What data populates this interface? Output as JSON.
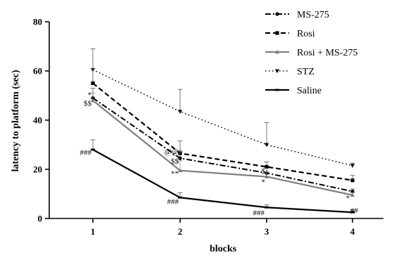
{
  "chart_data": {
    "type": "line",
    "xlabel": "blocks",
    "ylabel": "latency to platform (sec)",
    "x": [
      1,
      2,
      3,
      4
    ],
    "xticks": [
      "1",
      "2",
      "3",
      "4"
    ],
    "ylim": [
      0,
      80
    ],
    "yticks": [
      "0",
      "20",
      "40",
      "60",
      "80"
    ],
    "grid": false,
    "legend_position": "top-right",
    "series": [
      {
        "name": "STZ",
        "values": [
          60.5,
          43.5,
          30,
          21.5
        ],
        "errors": [
          8.5,
          9,
          9,
          1
        ],
        "style": "dotted",
        "marker": "triangle-down"
      },
      {
        "name": "Rosi",
        "values": [
          55,
          26.5,
          21,
          15.5
        ],
        "errors": [
          6,
          5,
          2,
          2
        ],
        "style": "dashed",
        "marker": "square"
      },
      {
        "name": "MS-275",
        "values": [
          49,
          24.5,
          18.5,
          11
        ],
        "errors": [
          4,
          3,
          2,
          1
        ],
        "style": "dashdot",
        "marker": "circle"
      },
      {
        "name": "Rosi + MS-275",
        "values": [
          48,
          19.5,
          17,
          9.5
        ],
        "errors": [
          3,
          4,
          2,
          1
        ],
        "style": "solid-gray",
        "marker": "triangle-up"
      },
      {
        "name": "Saline",
        "values": [
          28,
          8.5,
          4.5,
          2.5
        ],
        "errors": [
          4,
          2,
          1,
          1
        ],
        "style": "solid-black",
        "marker": "dash"
      }
    ],
    "annotations": [
      {
        "text": "*",
        "x": 1,
        "y": 50.5
      },
      {
        "text": "$$",
        "x": 1,
        "y": 47
      },
      {
        "text": "###",
        "x": 1,
        "y": 27
      },
      {
        "text": "@@",
        "x": 2,
        "y": 27.5
      },
      {
        "text": "$$",
        "x": 2,
        "y": 23.5
      },
      {
        "text": "**",
        "x": 2,
        "y": 18.5
      },
      {
        "text": "###",
        "x": 2,
        "y": 7
      },
      {
        "text": "$",
        "x": 3,
        "y": 19.5
      },
      {
        "text": "*",
        "x": 3,
        "y": 15
      },
      {
        "text": "###",
        "x": 3,
        "y": 2.5
      },
      {
        "text": "*",
        "x": 4,
        "y": 8.5
      },
      {
        "text": "##",
        "x": 4,
        "y": 3.5
      }
    ]
  },
  "legend": [
    {
      "label": "MS-275",
      "style": "dashdot",
      "marker": "circle"
    },
    {
      "label": "Rosi",
      "style": "dashed",
      "marker": "square"
    },
    {
      "label": "Rosi + MS-275",
      "style": "solid-gray",
      "marker": "triangle-up"
    },
    {
      "label": "STZ",
      "style": "dotted",
      "marker": "triangle-down"
    },
    {
      "label": "Saline",
      "style": "solid-black",
      "marker": "dash"
    }
  ]
}
